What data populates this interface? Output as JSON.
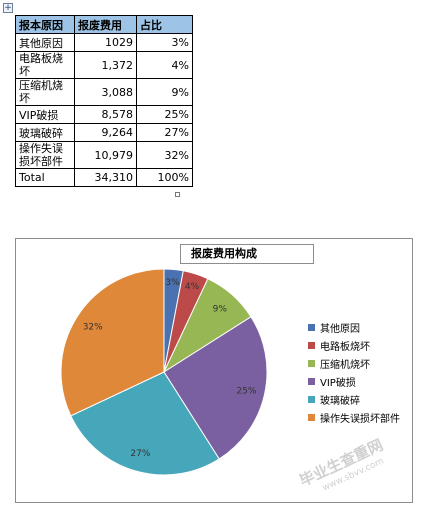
{
  "table": {
    "headers": [
      "报本原因",
      "报废费用",
      "占比"
    ],
    "rows": [
      {
        "reason": "其他原因",
        "cost": "1029",
        "share": "3%"
      },
      {
        "reason": "电路板烧坏",
        "cost": "1,372",
        "share": "4%"
      },
      {
        "reason": "压缩机烧坏",
        "cost": "3,088",
        "share": "9%"
      },
      {
        "reason": "VIP破损",
        "cost": "8,578",
        "share": "25%"
      },
      {
        "reason": "玻璃破碎",
        "cost": "9,264",
        "share": "27%"
      },
      {
        "reason": "操作失误损坏部件",
        "cost": "10,979",
        "share": "32%"
      },
      {
        "reason": "Total",
        "cost": "34,310",
        "share": "100%"
      }
    ]
  },
  "chart_data": {
    "type": "pie",
    "title": "报废费用构成",
    "categories": [
      "其他原因",
      "电路板烧坏",
      "压缩机烧坏",
      "VIP破损",
      "玻璃破碎",
      "操作失误损坏部件"
    ],
    "values": [
      1029,
      1372,
      3088,
      8578,
      9264,
      10979
    ],
    "labels": [
      "3%",
      "4%",
      "9%",
      "25%",
      "27%",
      "32%"
    ],
    "colors": [
      "#4a72b0",
      "#bc4a48",
      "#96b753",
      "#7a60a0",
      "#46a6ba",
      "#e0883a"
    ],
    "legend_position": "right"
  },
  "watermark": {
    "text": "毕业生查重网",
    "url": "www.sbvv.com"
  }
}
